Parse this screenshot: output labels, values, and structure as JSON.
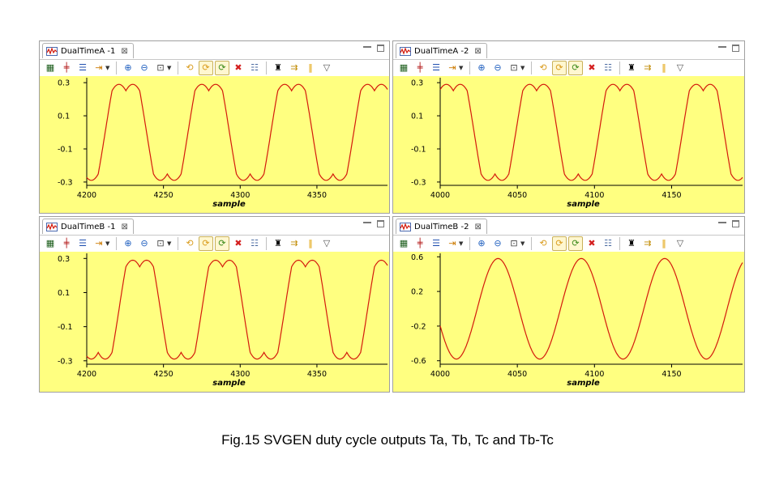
{
  "caption": "Fig.15 SVGEN duty cycle outputs Ta, Tb, Tc and Tb-Tc",
  "icons": {
    "tab_icon": "chart-icon",
    "close_icon": "close-x-icon",
    "minimize_icon": "minimize-icon",
    "maximize_icon": "maximize-icon",
    "toolbar": [
      "graph-properties-icon",
      "split-icon",
      "columns-icon",
      "marker-icon",
      "zoom-in-icon",
      "zoom-out-icon",
      "zoom-fit-icon",
      "refresh-icon",
      "continuous-refresh-icon",
      "auto-refresh-icon",
      "delete-icon",
      "list-icon",
      "binoculars-icon",
      "step-icon",
      "pause-icon",
      "view-menu-icon"
    ]
  },
  "colors": {
    "plot_background": "#ffff80",
    "trace": "#d41a0c",
    "panel_border": "#a0a0a0"
  },
  "panels": [
    {
      "tab": "DualTimeA -1",
      "xlabel": "sample"
    },
    {
      "tab": "DualTimeA -2",
      "xlabel": "sample"
    },
    {
      "tab": "DualTimeB -1",
      "xlabel": "sample"
    },
    {
      "tab": "DualTimeB -2",
      "xlabel": "sample"
    }
  ],
  "chart_data": [
    {
      "type": "line",
      "xlabel": "sample",
      "xlim": [
        4200,
        4396
      ],
      "ylim": [
        -0.32,
        0.33
      ],
      "xticks": [
        4200,
        4250,
        4300,
        4350
      ],
      "yticks": [
        0.3,
        0.1,
        -0.1,
        -0.3
      ],
      "ytick_labels": [
        "0.3",
        "0.1",
        "-0.1",
        "-0.3"
      ],
      "waveform": "svgen_phase",
      "period": 54,
      "phase": 4212,
      "amplitude": 0.29,
      "offset": 0.0
    },
    {
      "type": "line",
      "xlabel": "sample",
      "xlim": [
        4000,
        4196
      ],
      "ylim": [
        -0.32,
        0.33
      ],
      "xticks": [
        4000,
        4050,
        4100,
        4150
      ],
      "yticks": [
        0.3,
        0.1,
        -0.1,
        -0.3
      ],
      "ytick_labels": [
        "0.3",
        "0.1",
        "-0.1",
        "-0.3"
      ],
      "waveform": "svgen_phase",
      "period": 54,
      "phase": 3995,
      "amplitude": 0.29,
      "offset": 0.0
    },
    {
      "type": "line",
      "xlabel": "sample",
      "xlim": [
        4200,
        4396
      ],
      "ylim": [
        -0.32,
        0.33
      ],
      "xticks": [
        4200,
        4250,
        4300,
        4350
      ],
      "yticks": [
        0.3,
        0.1,
        -0.1,
        -0.3
      ],
      "ytick_labels": [
        "0.3",
        "0.1",
        "-0.1",
        "-0.3"
      ],
      "waveform": "svgen_phase",
      "period": 54,
      "phase": 4221,
      "amplitude": 0.29,
      "offset": 0.0
    },
    {
      "type": "line",
      "xlabel": "sample",
      "xlim": [
        4000,
        4196
      ],
      "ylim": [
        -0.64,
        0.64
      ],
      "xticks": [
        4000,
        4050,
        4100,
        4150
      ],
      "yticks": [
        0.6,
        0.2,
        -0.2,
        -0.6
      ],
      "ytick_labels": [
        "0.6",
        "0.2",
        "-0.2",
        "-0.6"
      ],
      "waveform": "sine",
      "period": 54,
      "phase": 4024,
      "amplitude": 0.58,
      "offset": 0.0
    }
  ]
}
